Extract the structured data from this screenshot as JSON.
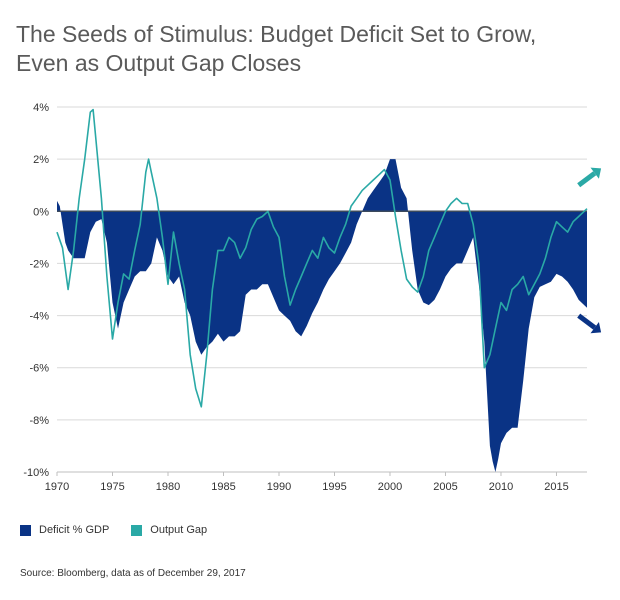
{
  "chart_data": {
    "type": "area",
    "title_lines": [
      "The Seeds of Stimulus: Budget Deficit Set to Grow,",
      "Even as Output Gap Closes"
    ],
    "x_ticks": [
      "1970",
      "1975",
      "1980",
      "1985",
      "1990",
      "1995",
      "2000",
      "2005",
      "2010",
      "2015"
    ],
    "y_ticks": [
      "4%",
      "2%",
      "0%",
      "-2%",
      "-4%",
      "-6%",
      "-8%",
      "-10%"
    ],
    "xlim": [
      1970,
      2017.75
    ],
    "ylim": [
      -10,
      4
    ],
    "grid": true,
    "legend_position": "bottom-left",
    "source": "Source: Bloomberg, data as of December 29, 2017",
    "series": [
      {
        "name": "Deficit % GDP",
        "color": "#0a3385",
        "style": "area",
        "x": [
          1970.0,
          1970.25,
          1970.5,
          1970.75,
          1971.0,
          1971.5,
          1972.0,
          1972.5,
          1973.0,
          1973.5,
          1974.0,
          1974.5,
          1975.0,
          1975.5,
          1976.0,
          1976.5,
          1977.0,
          1977.5,
          1978.0,
          1978.5,
          1979.0,
          1979.5,
          1980.0,
          1980.5,
          1981.0,
          1981.5,
          1982.0,
          1982.5,
          1983.0,
          1983.5,
          1984.0,
          1984.5,
          1985.0,
          1985.5,
          1986.0,
          1986.5,
          1987.0,
          1987.5,
          1988.0,
          1988.5,
          1989.0,
          1989.5,
          1990.0,
          1990.5,
          1991.0,
          1991.5,
          1992.0,
          1992.5,
          1993.0,
          1993.5,
          1994.0,
          1994.5,
          1995.0,
          1995.5,
          1996.0,
          1996.5,
          1997.0,
          1997.5,
          1998.0,
          1998.5,
          1999.0,
          1999.5,
          2000.0,
          2000.5,
          2001.0,
          2001.5,
          2002.0,
          2002.5,
          2003.0,
          2003.5,
          2004.0,
          2004.5,
          2005.0,
          2005.5,
          2006.0,
          2006.5,
          2007.0,
          2007.5,
          2008.0,
          2008.5,
          2009.0,
          2009.25,
          2009.5,
          2009.75,
          2010.0,
          2010.5,
          2011.0,
          2011.5,
          2012.0,
          2012.5,
          2013.0,
          2013.5,
          2014.0,
          2014.5,
          2015.0,
          2015.5,
          2016.0,
          2016.5,
          2017.0,
          2017.5,
          2017.75
        ],
        "y": [
          0.4,
          0.2,
          -0.5,
          -1.2,
          -1.5,
          -1.8,
          -1.8,
          -1.8,
          -0.8,
          -0.4,
          -0.3,
          -1.2,
          -3.5,
          -4.5,
          -3.5,
          -3.0,
          -2.5,
          -2.3,
          -2.3,
          -2.0,
          -1.0,
          -1.5,
          -2.5,
          -2.8,
          -2.5,
          -3.5,
          -4.0,
          -5.0,
          -5.5,
          -5.2,
          -5.0,
          -4.7,
          -5.0,
          -4.8,
          -4.8,
          -4.6,
          -3.2,
          -3.0,
          -3.0,
          -2.8,
          -2.8,
          -3.3,
          -3.8,
          -4.0,
          -4.2,
          -4.6,
          -4.8,
          -4.4,
          -3.9,
          -3.5,
          -3.0,
          -2.6,
          -2.3,
          -2.0,
          -1.6,
          -1.2,
          -0.5,
          0.0,
          0.5,
          0.8,
          1.1,
          1.4,
          2.0,
          2.0,
          0.9,
          0.5,
          -1.5,
          -3.0,
          -3.5,
          -3.6,
          -3.4,
          -3.0,
          -2.5,
          -2.2,
          -2.0,
          -2.0,
          -1.5,
          -1.0,
          -2.8,
          -5.0,
          -9.0,
          -9.6,
          -10.0,
          -9.5,
          -8.9,
          -8.5,
          -8.3,
          -8.3,
          -6.5,
          -4.5,
          -3.3,
          -2.9,
          -2.8,
          -2.7,
          -2.4,
          -2.5,
          -2.7,
          -3.0,
          -3.4,
          -3.6,
          -3.7
        ]
      },
      {
        "name": "Output Gap",
        "color": "#2aa9a6",
        "style": "line",
        "x": [
          1970.0,
          1970.5,
          1971.0,
          1971.5,
          1972.0,
          1972.5,
          1973.0,
          1973.25,
          1973.5,
          1974.0,
          1974.5,
          1975.0,
          1975.5,
          1976.0,
          1976.5,
          1977.0,
          1977.5,
          1978.0,
          1978.25,
          1978.5,
          1979.0,
          1979.5,
          1980.0,
          1980.5,
          1981.0,
          1981.5,
          1982.0,
          1982.5,
          1983.0,
          1983.5,
          1984.0,
          1984.5,
          1985.0,
          1985.5,
          1986.0,
          1986.5,
          1987.0,
          1987.5,
          1988.0,
          1988.5,
          1989.0,
          1989.5,
          1990.0,
          1990.5,
          1991.0,
          1991.5,
          1992.0,
          1992.5,
          1993.0,
          1993.5,
          1994.0,
          1994.5,
          1995.0,
          1995.5,
          1996.0,
          1996.5,
          1997.0,
          1997.5,
          1998.0,
          1998.5,
          1999.0,
          1999.5,
          2000.0,
          2000.5,
          2001.0,
          2001.5,
          2002.0,
          2002.5,
          2003.0,
          2003.5,
          2004.0,
          2004.5,
          2005.0,
          2005.5,
          2006.0,
          2006.5,
          2007.0,
          2007.5,
          2008.0,
          2008.5,
          2009.0,
          2009.5,
          2010.0,
          2010.5,
          2011.0,
          2011.5,
          2012.0,
          2012.5,
          2013.0,
          2013.5,
          2014.0,
          2014.5,
          2015.0,
          2015.5,
          2016.0,
          2016.5,
          2017.0,
          2017.5,
          2017.75
        ],
        "y": [
          -0.8,
          -1.4,
          -3.0,
          -1.5,
          0.5,
          2.0,
          3.8,
          3.9,
          2.8,
          0.5,
          -2.5,
          -4.9,
          -3.5,
          -2.4,
          -2.6,
          -1.5,
          -0.5,
          1.5,
          2.0,
          1.5,
          0.5,
          -1.0,
          -2.8,
          -0.8,
          -2.0,
          -3.0,
          -5.5,
          -6.8,
          -7.5,
          -5.5,
          -3.0,
          -1.5,
          -1.5,
          -1.0,
          -1.2,
          -1.8,
          -1.4,
          -0.7,
          -0.3,
          -0.2,
          0.0,
          -0.6,
          -1.0,
          -2.5,
          -3.6,
          -3.0,
          -2.5,
          -2.0,
          -1.5,
          -1.8,
          -1.0,
          -1.4,
          -1.6,
          -1.0,
          -0.5,
          0.2,
          0.5,
          0.8,
          1.0,
          1.2,
          1.4,
          1.6,
          1.2,
          -0.2,
          -1.5,
          -2.6,
          -2.9,
          -3.1,
          -2.5,
          -1.5,
          -1.0,
          -0.5,
          0.0,
          0.3,
          0.5,
          0.3,
          0.3,
          -0.5,
          -2.0,
          -6.0,
          -5.5,
          -4.5,
          -3.5,
          -3.8,
          -3.0,
          -2.8,
          -2.5,
          -3.2,
          -2.8,
          -2.4,
          -1.8,
          -1.0,
          -0.4,
          -0.6,
          -0.8,
          -0.4,
          -0.2,
          0.0,
          0.1
        ]
      }
    ],
    "annotations": [
      {
        "label": "up-arrow-icon",
        "color": "#2aa9a6",
        "at": [
          2017.0,
          1.0
        ],
        "direction": "up-right"
      },
      {
        "label": "down-arrow-icon",
        "color": "#0a3385",
        "at": [
          2017.0,
          -4.0
        ],
        "direction": "down-right"
      }
    ]
  }
}
